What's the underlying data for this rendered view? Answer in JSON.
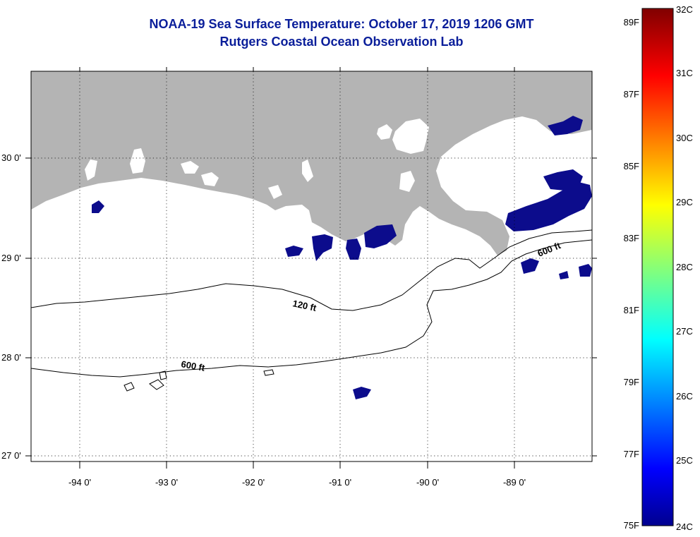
{
  "title": "NOAA-19 Sea Surface Temperature:  October 17, 2019 1206 GMT",
  "subtitle": "Rutgers Coastal Ocean Observation Lab",
  "map": {
    "lon_range": [
      -94.55,
      -88.1
    ],
    "lat_range": [
      26.95,
      30.85
    ],
    "lon_ticks": [
      {
        "value": -94,
        "label": "-94 0'"
      },
      {
        "value": -93,
        "label": "-93 0'"
      },
      {
        "value": -92,
        "label": "-92 0'"
      },
      {
        "value": -91,
        "label": "-91 0'"
      },
      {
        "value": -90,
        "label": "-90 0'"
      },
      {
        "value": -89,
        "label": "-89 0'"
      }
    ],
    "lat_ticks": [
      {
        "value": 30,
        "label": "30 0'"
      },
      {
        "value": 29,
        "label": "29 0'"
      },
      {
        "value": 28,
        "label": "28 0'"
      },
      {
        "value": 27,
        "label": "27 0'"
      }
    ],
    "contours": [
      {
        "label": "120 ft"
      },
      {
        "label": "600 ft"
      },
      {
        "label": "600 ft"
      }
    ],
    "land_color": "#b4b4b4",
    "cloud_color": "#ffffff",
    "sst_color": "#0c0c8c"
  },
  "colorbar": {
    "min_c": 24,
    "max_c": 32,
    "celsius_labels": [
      "32C",
      "31C",
      "30C",
      "29C",
      "28C",
      "27C",
      "26C",
      "25C",
      "24C"
    ],
    "fahrenheit_labels": [
      "89F",
      "87F",
      "85F",
      "83F",
      "81F",
      "79F",
      "77F",
      "75F"
    ]
  }
}
